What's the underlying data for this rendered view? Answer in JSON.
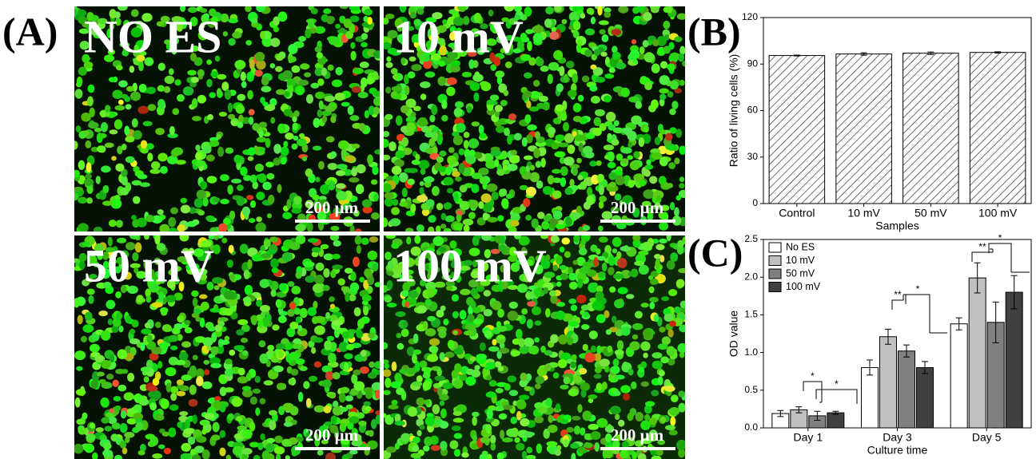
{
  "panel_labels": [
    "(A)",
    "(B)",
    "(C)"
  ],
  "images": [
    {
      "label": "NO ES",
      "scale_bar": "200 μm"
    },
    {
      "label": "10 mV",
      "scale_bar": "200 μm"
    },
    {
      "label": "50 mV",
      "scale_bar": "200 μm"
    },
    {
      "label": "100 mV",
      "scale_bar": "200 μm"
    }
  ],
  "chart_data": [
    {
      "type": "bar",
      "categories": [
        "Control",
        "10 mV",
        "50 mV",
        "100 mV"
      ],
      "values": [
        95.5,
        96.5,
        97,
        97.5
      ],
      "errors": [
        0.3,
        0.8,
        0.8,
        0.4
      ],
      "pattern": "hatch",
      "color": "#ffffff",
      "x_label": "Samples",
      "y_label": "Ratio of living cells (%)",
      "ylim": [
        0,
        120
      ],
      "yticks": [
        0,
        30,
        60,
        90,
        120
      ]
    },
    {
      "type": "bar",
      "categories": [
        "Day 1",
        "Day 3",
        "Day 5"
      ],
      "series": [
        {
          "name": "No ES",
          "color": "#ffffff",
          "values": [
            0.19,
            0.8,
            1.38
          ],
          "errors": [
            0.04,
            0.1,
            0.08
          ]
        },
        {
          "name": "10 mV",
          "color": "#c0c0c0",
          "values": [
            0.24,
            1.21,
            1.99
          ],
          "errors": [
            0.04,
            0.1,
            0.2
          ]
        },
        {
          "name": "50 mV",
          "color": "#808080",
          "values": [
            0.16,
            1.02,
            1.4
          ],
          "errors": [
            0.06,
            0.08,
            0.27
          ]
        },
        {
          "name": "100 mV",
          "color": "#404040",
          "values": [
            0.2,
            0.8,
            1.8
          ],
          "errors": [
            0.02,
            0.08,
            0.22
          ]
        }
      ],
      "x_label": "Culture time",
      "y_label": "OD value",
      "ylim": [
        0,
        2.5
      ],
      "yticks": [
        {
          "value": 0,
          "label": "0.0"
        },
        0.5,
        {
          "value": 1,
          "label": "1.0"
        },
        1.5,
        {
          "value": 2,
          "label": "2.0"
        },
        2.5
      ],
      "legend": "upper left",
      "annotations": [
        "*",
        "*",
        "**",
        "*",
        "**",
        "*"
      ]
    }
  ]
}
